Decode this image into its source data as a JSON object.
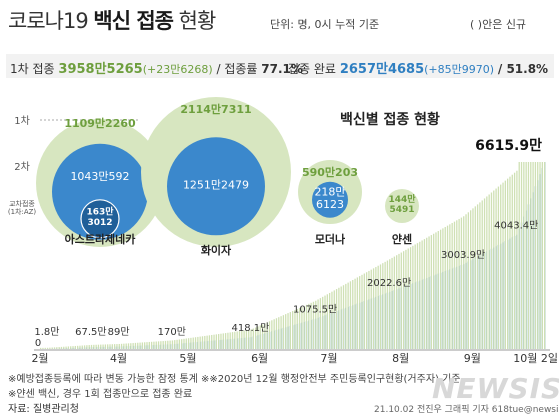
{
  "header": {
    "title_normal": "코로나19",
    "title_bold": "백신 접종",
    "title_tail": "현황",
    "unit_note": "단위: 명, 0시 누적 기준",
    "paren_note": "( )안은 신규"
  },
  "summary": {
    "first_label": "1차 접종",
    "first_value": "3958만5265",
    "first_inc": "(+23만6268)",
    "first_rate_label": "/ 접종률",
    "first_rate": "77.1%",
    "full_label": "접종 완료",
    "full_value": "2657만4685",
    "full_inc": "(+85만9970)",
    "full_rate": "/ 51.8%"
  },
  "bubble_chart": {
    "title": "백신별 접종 현황",
    "legend_first": "1차",
    "legend_second": "2차",
    "legend_cross": "교차접종\n(1차:AZ)",
    "vaccines": [
      {
        "name": "아스트라제네카",
        "first": "1109만2260",
        "second": "1043만592",
        "cross": "163만\n3012"
      },
      {
        "name": "화이자",
        "first": "2114만7311",
        "second": "1251만2479"
      },
      {
        "name": "모더나",
        "first": "590만203",
        "second": "218만\n6123"
      },
      {
        "name": "얀센",
        "first": "144만\n5491"
      }
    ]
  },
  "chart_data": {
    "type": "area",
    "title": "",
    "x_tick_labels": [
      "2월",
      "4월",
      "5월",
      "6월",
      "7월",
      "8월",
      "9월",
      "10월 2일"
    ],
    "x_tick_dates": [
      "2021-02-26",
      "2021-04-01",
      "2021-05-01",
      "2021-06-01",
      "2021-07-01",
      "2021-08-01",
      "2021-09-01",
      "2021-10-02"
    ],
    "annotations": [
      {
        "date": "2021-02-26",
        "value": 0,
        "label": "0"
      },
      {
        "date": "2021-03-01",
        "value": 1.8,
        "label": "1.8만"
      },
      {
        "date": "2021-03-20",
        "value": 67.5,
        "label": "67.5만"
      },
      {
        "date": "2021-04-01",
        "value": 89,
        "label": "89만"
      },
      {
        "date": "2021-04-24",
        "value": 170,
        "label": "170만"
      },
      {
        "date": "2021-05-28",
        "value": 418.1,
        "label": "418.1만"
      },
      {
        "date": "2021-06-25",
        "value": 1075.5,
        "label": "1075.5만"
      },
      {
        "date": "2021-07-27",
        "value": 2022.6,
        "label": "2022.6만"
      },
      {
        "date": "2021-08-28",
        "value": 3003.9,
        "label": "3003.9만"
      },
      {
        "date": "2021-09-20",
        "value": 4043.4,
        "label": "4043.4만"
      },
      {
        "date": "2021-10-02",
        "value": 6615.9,
        "label": "6615.9만"
      }
    ],
    "series": [
      {
        "color": "#3b88cc"
      }
    ],
    "colors": {
      "first": "#cfe0b4",
      "full": "#3b88cc"
    }
  },
  "footnotes": {
    "line1": "※예방접종등록에 따라 변동 가능한 잠정 통계  ※※2020년 12월 행정안전부 주민등록인구현황(거주자) 기준",
    "line2": "※얀센 백신, 경우 1회 접종만으로 접종 완료",
    "source": "자료: 질병관리청",
    "credit": "21.10.02  전진우  그래픽  기자  618tue@newsis.com",
    "logo": "NEWSIS"
  }
}
